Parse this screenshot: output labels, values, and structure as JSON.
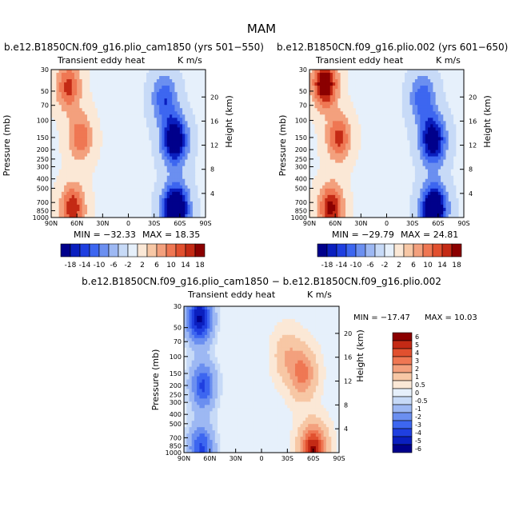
{
  "figure": {
    "title": "MAM",
    "diff_title": "b.e12.B1850CN.f09_g16.plio_cam1850 − b.e12.B1850CN.f09_g16.plio.002"
  },
  "colors": {
    "top_scale": [
      "#00008b",
      "#0a1fbf",
      "#1f3fe0",
      "#3d66f0",
      "#6b8ff0",
      "#9db8f3",
      "#c7daf7",
      "#e6f0fb",
      "#fbe8d6",
      "#f7c7a5",
      "#f3a07d",
      "#ef7753",
      "#e1502f",
      "#c42a15",
      "#8b0000"
    ],
    "diff_scale": [
      "#00008b",
      "#0a1fbf",
      "#1f3fe0",
      "#3d66f0",
      "#6b8ff0",
      "#9db8f3",
      "#c7daf7",
      "#e6f0fb",
      "#fbe8d6",
      "#f7c7a5",
      "#f3a07d",
      "#ef7753",
      "#e1502f",
      "#c42a15",
      "#8b0000"
    ]
  },
  "colorbars": {
    "top": {
      "labels": [
        "-18",
        "-14",
        "-10",
        "-6",
        "-2",
        "2",
        "6",
        "10",
        "14",
        "18"
      ]
    },
    "diff": {
      "labels": [
        "6",
        "5",
        "4",
        "3",
        "2",
        "1",
        "0.5",
        "0",
        "-0.5",
        "-1",
        "-2",
        "-3",
        "-4",
        "-5",
        "-6"
      ]
    }
  },
  "chart_data": [
    {
      "type": "heatmap",
      "title": "b.e12.B1850CN.f09_g16.plio_cam1850 (yrs 501−550)",
      "left_label": "Transient eddy heat",
      "units": "K m/s",
      "xlabel": "",
      "ylabel": "Pressure (mb)",
      "y2label": "Height (km)",
      "x_ticks": [
        "90N",
        "60N",
        "30N",
        "0",
        "30S",
        "60S",
        "90S"
      ],
      "y_ticks": [
        "30",
        "50",
        "70",
        "100",
        "150",
        "200",
        "250",
        "300",
        "400",
        "500",
        "700",
        "850",
        "1000"
      ],
      "y2_ticks": [
        "20",
        "16",
        "12",
        "8",
        "4"
      ],
      "min_label": "MIN = −32.33",
      "max_label": "MAX =  18.35",
      "min": -32.33,
      "max": 18.35,
      "features": [
        {
          "lat": 70,
          "p": 45,
          "value": 14
        },
        {
          "lat": 56,
          "p": 150,
          "value": 12
        },
        {
          "lat": 65,
          "p": 800,
          "value": 16
        },
        {
          "lat": -54,
          "p": 160,
          "value": -24
        },
        {
          "lat": -55,
          "p": 820,
          "value": -30
        },
        {
          "lat": -42,
          "p": 60,
          "value": -12
        }
      ]
    },
    {
      "type": "heatmap",
      "title": "b.e12.B1850CN.f09_g16.plio.002 (yrs 601−650)",
      "left_label": "Transient eddy heat",
      "units": "K m/s",
      "xlabel": "",
      "ylabel": "Pressure (mb)",
      "y2label": "Height (km)",
      "x_ticks": [
        "90N",
        "60N",
        "30N",
        "0",
        "30S",
        "60S",
        "90S"
      ],
      "y_ticks": [
        "30",
        "50",
        "70",
        "100",
        "150",
        "200",
        "250",
        "300",
        "400",
        "500",
        "700",
        "850",
        "1000"
      ],
      "y2_ticks": [
        "20",
        "16",
        "12",
        "8",
        "4"
      ],
      "min_label": "MIN = −29.79",
      "max_label": "MAX =  24.81",
      "min": -29.79,
      "max": 24.81,
      "features": [
        {
          "lat": 72,
          "p": 42,
          "value": 22
        },
        {
          "lat": 56,
          "p": 150,
          "value": 14
        },
        {
          "lat": 65,
          "p": 800,
          "value": 18
        },
        {
          "lat": -54,
          "p": 160,
          "value": -22
        },
        {
          "lat": -55,
          "p": 820,
          "value": -28
        },
        {
          "lat": -42,
          "p": 60,
          "value": -12
        }
      ]
    },
    {
      "type": "heatmap",
      "title": "b.e12.B1850CN.f09_g16.plio_cam1850 − b.e12.B1850CN.f09_g16.plio.002",
      "left_label": "Transient eddy heat",
      "units": "K m/s",
      "xlabel": "",
      "ylabel": "Pressure (mb)",
      "y2label": "Height (km)",
      "x_ticks": [
        "90N",
        "60N",
        "30N",
        "0",
        "30S",
        "60S",
        "90S"
      ],
      "y_ticks": [
        "30",
        "50",
        "70",
        "100",
        "150",
        "200",
        "250",
        "300",
        "400",
        "500",
        "700",
        "850",
        "1000"
      ],
      "y2_ticks": [
        "20",
        "16",
        "12",
        "8",
        "4"
      ],
      "min_label": "MIN = −17.47",
      "max_label": "MAX =  10.03",
      "min": -17.47,
      "max": 10.03,
      "features": [
        {
          "lat": 72,
          "p": 40,
          "value": -6
        },
        {
          "lat": 68,
          "p": 200,
          "value": -4
        },
        {
          "lat": 70,
          "p": 900,
          "value": -4
        },
        {
          "lat": -48,
          "p": 150,
          "value": 3
        },
        {
          "lat": -60,
          "p": 950,
          "value": 6
        },
        {
          "lat": -30,
          "p": 100,
          "value": 1.5
        }
      ]
    }
  ]
}
